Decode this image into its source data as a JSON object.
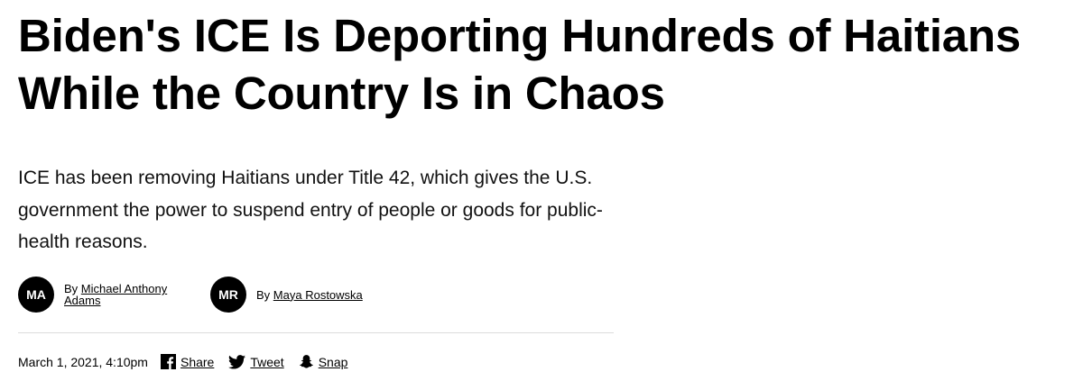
{
  "article": {
    "headline": "Biden's ICE Is Deporting Hundreds of Haitians While the Country Is in Chaos",
    "dek": "ICE has been removing Haitians under Title 42, which gives the U.S. government the power to suspend entry of people or goods for public-health reasons."
  },
  "authors": [
    {
      "initials": "MA",
      "prefix": "By",
      "name": "Michael Anthony Adams"
    },
    {
      "initials": "MR",
      "prefix": "By",
      "name": "Maya Rostowska"
    }
  ],
  "meta": {
    "timestamp": "March 1, 2021, 4:10pm"
  },
  "share": [
    {
      "icon": "facebook-icon",
      "label": "Share"
    },
    {
      "icon": "twitter-icon",
      "label": "Tweet"
    },
    {
      "icon": "snapchat-icon",
      "label": "Snap"
    }
  ]
}
